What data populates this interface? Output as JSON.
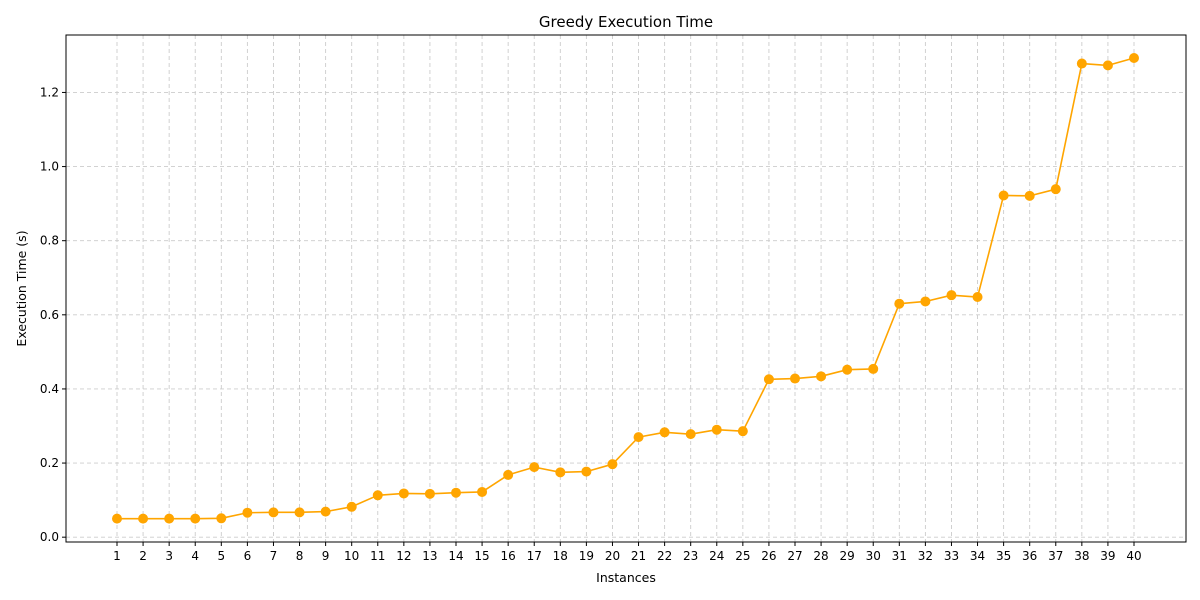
{
  "chart_data": {
    "type": "line",
    "title": "Greedy Execution Time",
    "xlabel": "Instances",
    "ylabel": "Execution Time (s)",
    "categories": [
      "1",
      "2",
      "3",
      "4",
      "5",
      "6",
      "7",
      "8",
      "9",
      "10",
      "11",
      "12",
      "13",
      "14",
      "15",
      "16",
      "17",
      "18",
      "19",
      "20",
      "21",
      "22",
      "23",
      "24",
      "25",
      "26",
      "27",
      "28",
      "29",
      "30",
      "31",
      "32",
      "33",
      "34",
      "35",
      "36",
      "37",
      "38",
      "39",
      "40"
    ],
    "series": [
      {
        "values": [
          0.05,
          0.05,
          0.05,
          0.05,
          0.051,
          0.066,
          0.067,
          0.067,
          0.069,
          0.082,
          0.113,
          0.118,
          0.117,
          0.12,
          0.122,
          0.168,
          0.189,
          0.175,
          0.177,
          0.197,
          0.27,
          0.283,
          0.278,
          0.29,
          0.286,
          0.426,
          0.428,
          0.434,
          0.452,
          0.454,
          0.63,
          0.636,
          0.653,
          0.648,
          0.922,
          0.921,
          0.939,
          1.278,
          1.273,
          1.293
        ],
        "color": "#FFA500",
        "marker": "circle"
      }
    ],
    "ylim": [
      -0.013,
      1.355
    ],
    "yticks": [
      0.0,
      0.2,
      0.4,
      0.6,
      0.8,
      1.0,
      1.2
    ],
    "ytick_labels": [
      "0.0",
      "0.2",
      "0.4",
      "0.6",
      "0.8",
      "1.0",
      "1.2"
    ],
    "grid": true,
    "legend": "none"
  }
}
